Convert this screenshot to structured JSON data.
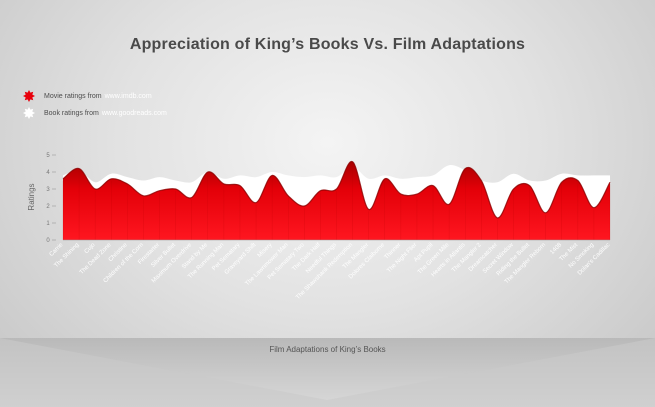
{
  "title": "Appreciation of King’s Books Vs. Film Adaptations",
  "legend": [
    {
      "label": "Movie ratings from",
      "source": "www.imdb.com",
      "color": "#e8000b"
    },
    {
      "label": "Book ratings from",
      "source": "www.goodreads.com",
      "color": "#ffffff"
    }
  ],
  "chart_data": {
    "type": "area",
    "ylabel": "Ratings",
    "xlabel": "Film Adaptations of King’s Books",
    "ylim": [
      0,
      5
    ],
    "yticks": [
      "0",
      "1",
      "2",
      "3",
      "4",
      "5"
    ],
    "categories": [
      "Carrie",
      "The Shining",
      "Cujo",
      "The Dead Zone",
      "Christine",
      "Children of the Corn",
      "Firestarter",
      "Silver Bullet",
      "Maximum Overdrive",
      "Stand by Me",
      "The Running Man",
      "Pet Sematary",
      "Graveyard Shift",
      "Misery",
      "The Lawnmower Man",
      "Pet Sematary Two",
      "The Dark Half",
      "Needful Things",
      "The Shawshank Redemption",
      "The Mangler",
      "Dolores Claiborne",
      "Thinner",
      "The Night Flier",
      "Apt Pupil",
      "The Green Mile",
      "Hearts in Atlantis",
      "The Mangler 2",
      "Dreamcatcher",
      "Secret Window",
      "Riding the Bullet",
      "The Mangler Reborn",
      "1408",
      "The Mist",
      "No Smoking",
      "Dolan's Cadillac"
    ],
    "series": [
      {
        "name": "Movie ratings from www.imdb.com",
        "color": "#e8000b",
        "values": [
          3.6,
          4.2,
          3.0,
          3.6,
          3.3,
          2.6,
          2.9,
          3.0,
          2.5,
          4.0,
          3.3,
          3.2,
          2.2,
          3.8,
          2.6,
          2.0,
          2.9,
          3.0,
          4.6,
          1.8,
          3.6,
          2.7,
          2.7,
          3.2,
          2.1,
          4.2,
          3.5,
          1.3,
          3.0,
          3.2,
          1.6,
          3.4,
          3.5,
          1.9,
          3.4
        ]
      },
      {
        "name": "Book ratings from www.goodreads.com",
        "color": "#ffffff",
        "values": [
          3.8,
          4.1,
          3.4,
          3.9,
          3.7,
          3.5,
          3.7,
          3.5,
          3.4,
          4.0,
          3.6,
          3.8,
          3.7,
          4.0,
          3.8,
          3.7,
          3.8,
          3.7,
          4.3,
          3.6,
          3.8,
          3.6,
          3.7,
          3.8,
          4.4,
          4.1,
          3.5,
          3.4,
          3.9,
          3.5,
          3.5,
          3.9,
          3.8,
          3.8,
          3.8
        ]
      }
    ]
  }
}
